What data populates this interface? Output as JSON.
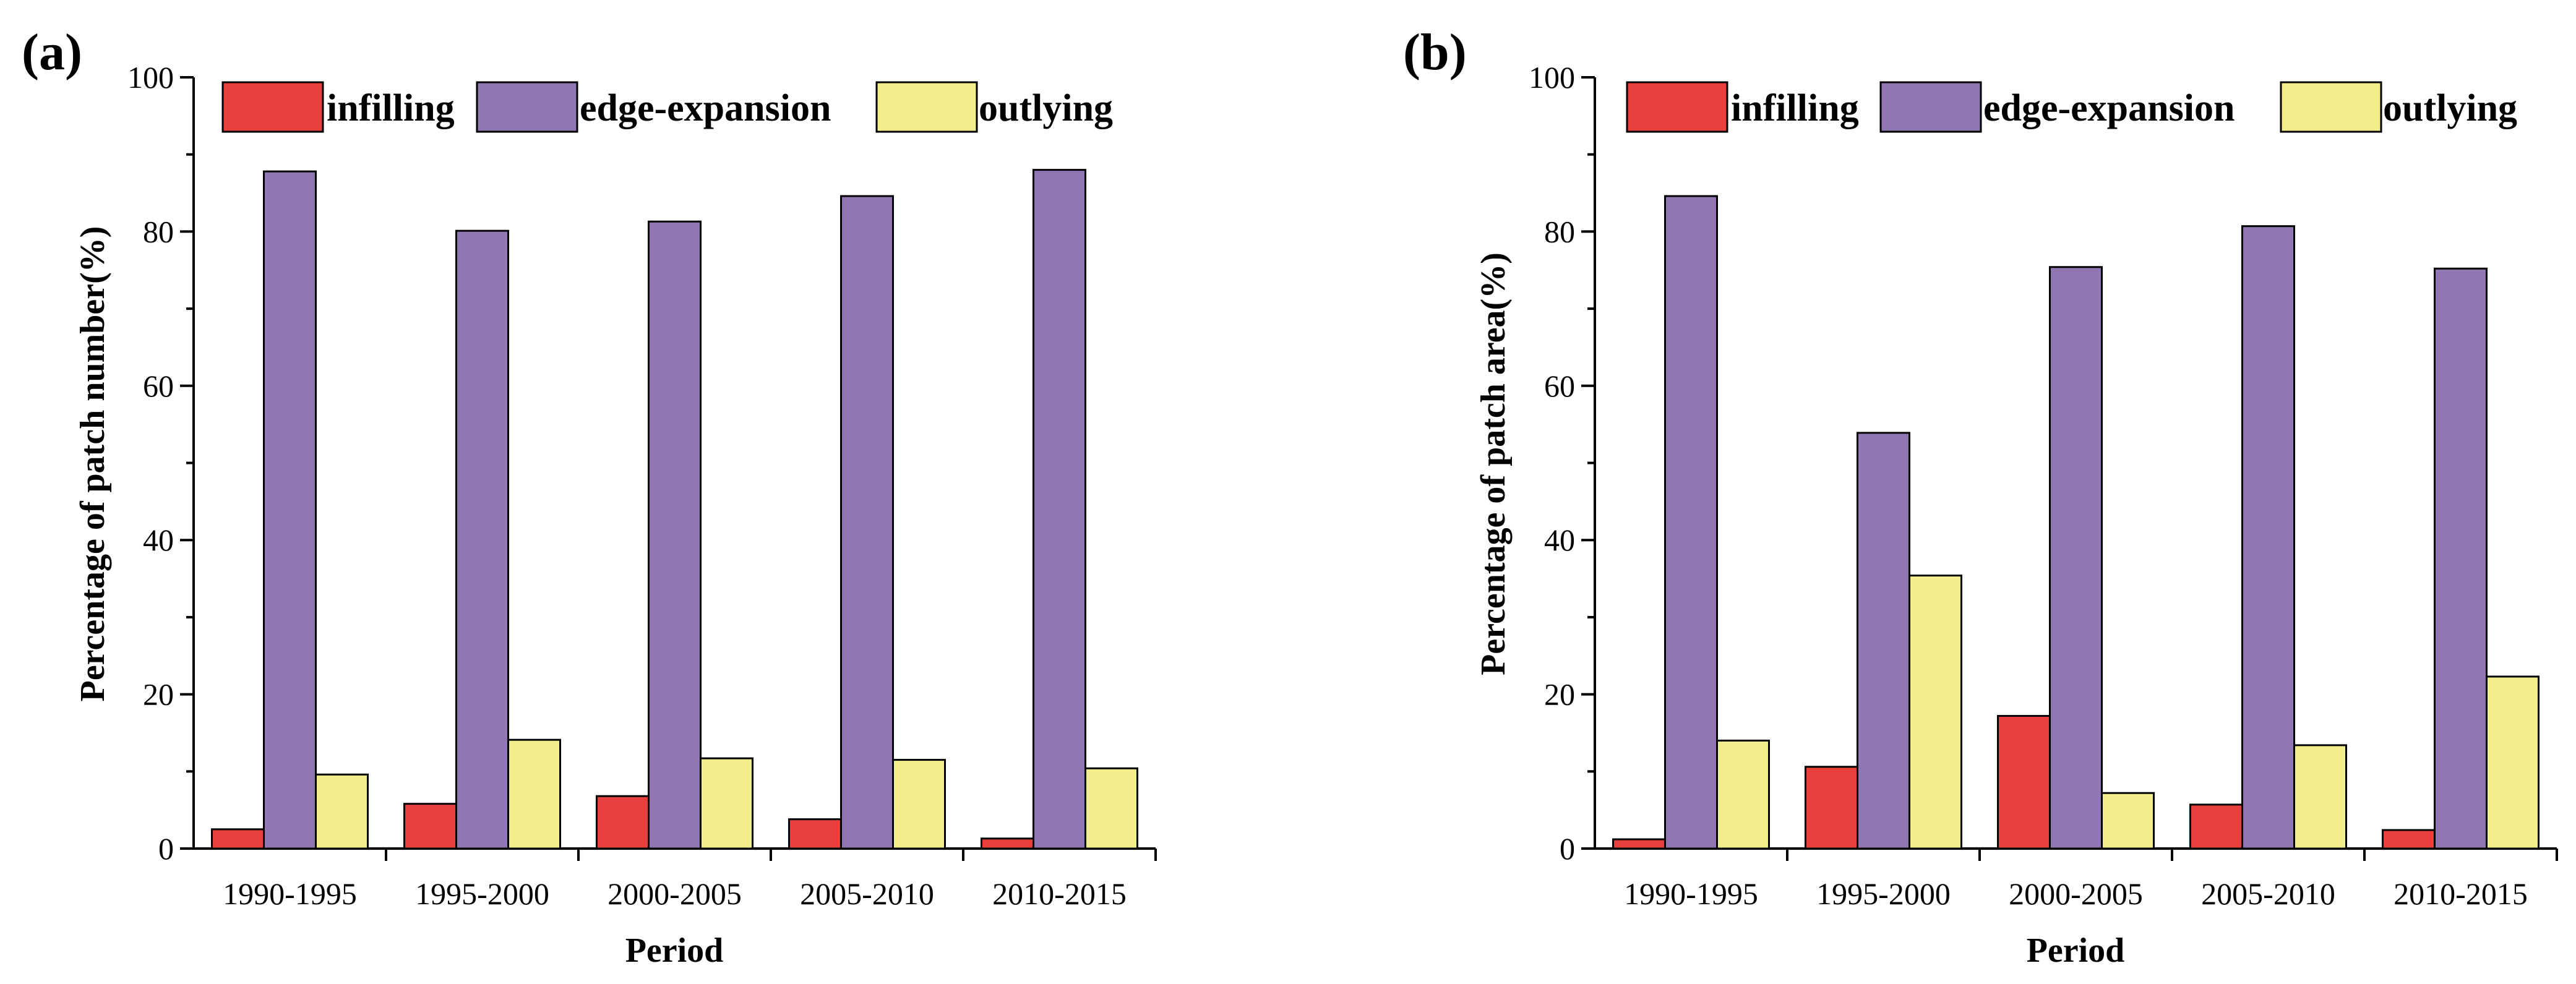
{
  "colors": {
    "infilling": "#e8403c",
    "edge_expansion": "#9176b3",
    "outlying": "#f2ee8c"
  },
  "chart_data": [
    {
      "type": "bar",
      "panel_label": "(a)",
      "xlabel": "Period",
      "ylabel": "Percentage of patch number(%)",
      "ylim": [
        0,
        100
      ],
      "yticks": [
        "0",
        "20",
        "40",
        "60",
        "80",
        "100"
      ],
      "legend_position": "top",
      "categories": [
        "1990-1995",
        "1995-2000",
        "2000-2005",
        "2005-2010",
        "2010-2015"
      ],
      "series": [
        {
          "name": "infilling",
          "values": [
            2.5,
            5.8,
            6.8,
            3.8,
            1.3
          ]
        },
        {
          "name": "edge-expansion",
          "values": [
            87.8,
            80.1,
            81.3,
            84.6,
            88.0
          ]
        },
        {
          "name": "outlying",
          "values": [
            9.6,
            14.1,
            11.7,
            11.5,
            10.4
          ]
        }
      ]
    },
    {
      "type": "bar",
      "panel_label": "(b)",
      "xlabel": "Period",
      "ylabel": "Percentage of patch area(%)",
      "ylim": [
        0,
        100
      ],
      "yticks": [
        "0",
        "20",
        "40",
        "60",
        "80",
        "100"
      ],
      "legend_position": "top",
      "categories": [
        "1990-1995",
        "1995-2000",
        "2000-2005",
        "2005-2010",
        "2010-2015"
      ],
      "series": [
        {
          "name": "infilling",
          "values": [
            1.2,
            10.6,
            17.2,
            5.7,
            2.4
          ]
        },
        {
          "name": "edge-expansion",
          "values": [
            84.6,
            53.9,
            75.4,
            80.7,
            75.2
          ]
        },
        {
          "name": "outlying",
          "values": [
            14.0,
            35.4,
            7.2,
            13.4,
            22.3
          ]
        }
      ]
    }
  ]
}
